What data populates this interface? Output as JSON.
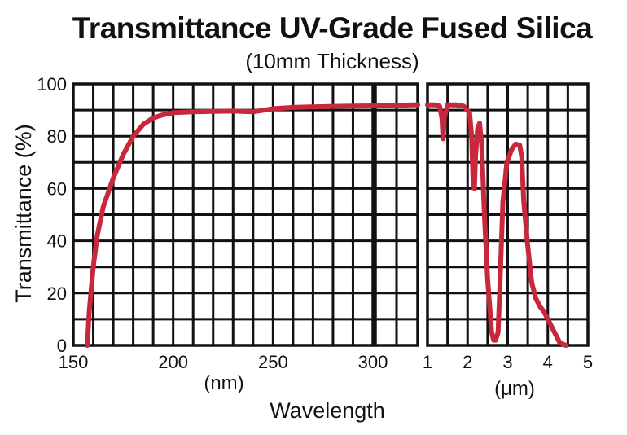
{
  "colors": {
    "curve": "#c8283c",
    "grid": "#111111",
    "text": "#111111",
    "background": "#ffffff"
  },
  "chart_data": {
    "type": "line",
    "title": "Transmittance UV-Grade Fused Silica",
    "subtitle": "(10mm Thickness)",
    "ylabel": "Transmittance  (%)",
    "xlabel": "Wavelength",
    "ylim": [
      0,
      100
    ],
    "y_ticks": [
      "0",
      "20",
      "40",
      "60",
      "80",
      "100"
    ],
    "grid": true,
    "panels": [
      {
        "unit": "(nm)",
        "xlim": [
          150,
          300
        ],
        "x_ticks": [
          "150",
          "200",
          "250",
          "300"
        ],
        "series": [
          {
            "x": [
              157,
              158,
              160,
              162,
              165,
              170,
              175,
              180,
              185,
              190,
              195,
              200,
              210,
              220,
              230,
              240,
              250,
              260,
              270,
              280,
              290,
              300
            ],
            "y": [
              0,
              13,
              30,
              42,
              53,
              64,
              73,
              80,
              84.5,
              87,
              88.2,
              89,
              89.3,
              89.5,
              89.6,
              89.3,
              90.5,
              91,
              91.2,
              91.4,
              91.5,
              91.6
            ]
          }
        ]
      },
      {
        "unit": "",
        "xlim": [
          300,
          1000
        ],
        "x_ticks": [],
        "series": [
          {
            "x": [
              300,
              400,
              500,
              600,
              700,
              800,
              900,
              1000
            ],
            "y": [
              91.6,
              91.7,
              91.8,
              91.8,
              91.9,
              91.9,
              92,
              92
            ]
          }
        ]
      },
      {
        "unit": "(μm)",
        "xlim": [
          1,
          5
        ],
        "x_ticks": [
          "1",
          "2",
          "3",
          "4",
          "5"
        ],
        "series": [
          {
            "x": [
              1.0,
              1.2,
              1.3,
              1.36,
              1.39,
              1.42,
              1.5,
              1.7,
              1.9,
              2.05,
              2.1,
              2.14,
              2.17,
              2.2,
              2.25,
              2.3,
              2.35,
              2.42,
              2.5,
              2.6,
              2.65,
              2.7,
              2.76,
              2.8,
              2.88,
              2.98,
              3.1,
              3.2,
              3.3,
              3.35,
              3.4,
              3.5,
              3.6,
              3.7,
              3.8,
              3.9,
              4.0,
              4.1,
              4.2,
              4.3,
              4.45
            ],
            "y": [
              92,
              92,
              91.5,
              87,
              79,
              87,
              92,
              92,
              91.5,
              89,
              80,
              62,
              60,
              73,
              83,
              85,
              77,
              50,
              25,
              5,
              2,
              2,
              5,
              20,
              55,
              70,
              75,
              77,
              76.5,
              72,
              55,
              38,
              24,
              18,
              15,
              13,
              10,
              7,
              4,
              1,
              0
            ]
          }
        ]
      }
    ]
  }
}
